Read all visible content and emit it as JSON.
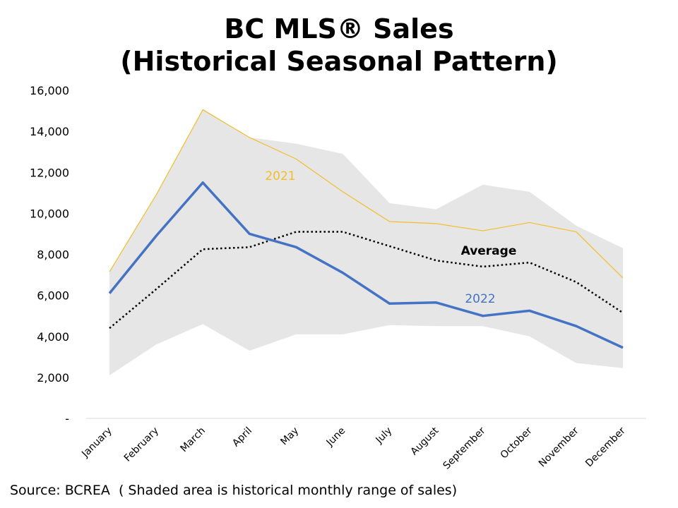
{
  "header": {
    "title_line1": "BC MLS® Sales",
    "title_line2": "(Historical Seasonal Pattern)"
  },
  "footer": {
    "source": "Source: BCREA  ( Shaded area is historical monthly range of sales)"
  },
  "chart_data": {
    "type": "line",
    "categories": [
      "January",
      "February",
      "March",
      "April",
      "May",
      "June",
      "July",
      "August",
      "September",
      "October",
      "November",
      "December"
    ],
    "ylim": [
      0,
      16000
    ],
    "yticks": [
      0,
      2000,
      4000,
      6000,
      8000,
      10000,
      12000,
      14000,
      16000
    ],
    "ytick_labels": [
      "-",
      "2,000",
      "4,000",
      "6,000",
      "8,000",
      "10,000",
      "12,000",
      "14,000",
      "16,000"
    ],
    "grid": false,
    "range_band": {
      "low": [
        2100,
        3600,
        4600,
        3300,
        4100,
        4100,
        4550,
        4500,
        4500,
        4000,
        2700,
        2450
      ],
      "high": [
        7150,
        10900,
        15100,
        13700,
        13400,
        12900,
        10500,
        10200,
        11400,
        11050,
        9400,
        8300
      ],
      "color": "#e6e6e6"
    },
    "series": [
      {
        "name": "2021",
        "values": [
          7150,
          10900,
          15050,
          13700,
          12650,
          11050,
          9600,
          9500,
          9150,
          9550,
          9100,
          6850
        ],
        "color": "#f2bd2b",
        "style": "solid-thin"
      },
      {
        "name": "Average",
        "values": [
          4400,
          6300,
          8250,
          8350,
          9100,
          9100,
          8400,
          7700,
          7400,
          7600,
          6650,
          5150
        ],
        "color": "#000000",
        "style": "dotted"
      },
      {
        "name": "2022",
        "values": [
          6100,
          8900,
          11500,
          9000,
          8350,
          7100,
          5600,
          5650,
          5000,
          5250,
          4500,
          3450
        ],
        "color": "#4472c4",
        "style": "solid-thick"
      }
    ],
    "annotations": [
      {
        "text": "2021",
        "color": "#f2bd2b"
      },
      {
        "text": "Average",
        "color": "#000000"
      },
      {
        "text": "2022",
        "color": "#4472c4"
      }
    ]
  }
}
